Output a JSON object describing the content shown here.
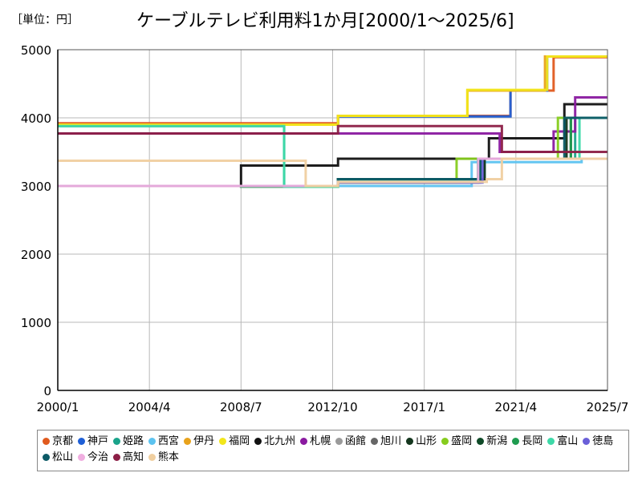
{
  "chart_data": {
    "type": "line",
    "unit_label": "［単位：円］",
    "title": "ケーブルテレビ利用料1か月[2000/1～2025/6]",
    "xlabel": "",
    "ylabel": "",
    "ylim": [
      0,
      5000
    ],
    "yticks": [
      0,
      1000,
      2000,
      3000,
      4000,
      5000
    ],
    "xlim": [
      2000.0,
      2025.5
    ],
    "xticks": [
      {
        "label": "2000/1",
        "value": 2000.0
      },
      {
        "label": "2004/4",
        "value": 2004.25
      },
      {
        "label": "2008/7",
        "value": 2008.5
      },
      {
        "label": "2012/10",
        "value": 2012.75
      },
      {
        "label": "2017/1",
        "value": 2017.0
      },
      {
        "label": "2021/4",
        "value": 2021.25
      },
      {
        "label": "2025/7",
        "value": 2025.5
      }
    ],
    "grid": true,
    "legend_position": "bottom",
    "series": [
      {
        "name": "京都",
        "color": "#e05a1e",
        "steps": [
          [
            2000.0,
            3920
          ],
          [
            2013.0,
            4030
          ],
          [
            2021.0,
            4400
          ],
          [
            2023.0,
            4890
          ]
        ]
      },
      {
        "name": "神戸",
        "color": "#1f5fd6",
        "steps": [
          [
            2000.0,
            3900
          ],
          [
            2013.0,
            4020
          ],
          [
            2021.0,
            4400
          ],
          [
            2022.7,
            4900
          ]
        ]
      },
      {
        "name": "姫路",
        "color": "#1aa38a",
        "steps": [
          [
            2000.0,
            3880
          ],
          [
            2010.5,
            3000
          ],
          [
            2013.0,
            3100
          ],
          [
            2019.8,
            3400
          ],
          [
            2024.0,
            4000
          ]
        ]
      },
      {
        "name": "西宮",
        "color": "#5cc3f0",
        "steps": [
          [
            2000.0,
            3000
          ],
          [
            2008.5,
            3000
          ],
          [
            2019.2,
            3350
          ],
          [
            2024.3,
            3400
          ]
        ]
      },
      {
        "name": "伊丹",
        "color": "#e8a21c",
        "steps": [
          [
            2000.0,
            3900
          ],
          [
            2013.0,
            4030
          ],
          [
            2019.0,
            4400
          ],
          [
            2021.0,
            4400
          ],
          [
            2022.6,
            4900
          ]
        ]
      },
      {
        "name": "福岡",
        "color": "#f2e61a",
        "steps": [
          [
            2000.0,
            3900
          ],
          [
            2013.0,
            4030
          ],
          [
            2019.0,
            4410
          ],
          [
            2022.7,
            4900
          ]
        ]
      },
      {
        "name": "北九州",
        "color": "#111111",
        "steps": [
          [
            2000.0,
            3000
          ],
          [
            2008.5,
            3300
          ],
          [
            2013.0,
            3400
          ],
          [
            2020.0,
            3700
          ],
          [
            2023.5,
            4200
          ]
        ]
      },
      {
        "name": "札幌",
        "color": "#8a1aa0",
        "steps": [
          [
            2000.0,
            3770
          ],
          [
            2020.5,
            3500
          ],
          [
            2023.0,
            3800
          ],
          [
            2024.0,
            4300
          ]
        ]
      },
      {
        "name": "函館",
        "color": "#9a9a9a",
        "steps": [
          [
            2000.0,
            3000
          ],
          [
            2013.0,
            3050
          ],
          [
            2019.6,
            3400
          ]
        ]
      },
      {
        "name": "旭川",
        "color": "#666666",
        "steps": [
          [
            2000.0,
            3000
          ],
          [
            2013.0,
            3050
          ],
          [
            2019.5,
            3400
          ]
        ]
      },
      {
        "name": "山形",
        "color": "#14361e",
        "steps": [
          [
            2000.0,
            3000
          ],
          [
            2013.0,
            3100
          ],
          [
            2019.8,
            3400
          ],
          [
            2023.6,
            4000
          ]
        ]
      },
      {
        "name": "盛岡",
        "color": "#86cc1e",
        "steps": [
          [
            2000.0,
            3000
          ],
          [
            2008.5,
            3000
          ],
          [
            2013.0,
            3050
          ],
          [
            2018.5,
            3400
          ],
          [
            2023.2,
            4000
          ]
        ]
      },
      {
        "name": "新潟",
        "color": "#0f4a28",
        "steps": [
          [
            2000.0,
            3000
          ],
          [
            2008.5,
            3000
          ],
          [
            2013.0,
            3100
          ],
          [
            2019.5,
            3400
          ],
          [
            2023.8,
            4000
          ]
        ]
      },
      {
        "name": "長岡",
        "color": "#1f9c50",
        "steps": [
          [
            2000.0,
            3000
          ],
          [
            2008.5,
            2990
          ],
          [
            2013.0,
            3060
          ],
          [
            2019.5,
            3400
          ],
          [
            2023.8,
            4000
          ]
        ]
      },
      {
        "name": "富山",
        "color": "#3dd9a8",
        "steps": [
          [
            2000.0,
            3880
          ],
          [
            2010.5,
            2990
          ],
          [
            2013.0,
            3080
          ],
          [
            2019.5,
            3400
          ],
          [
            2024.2,
            4000
          ]
        ]
      },
      {
        "name": "徳島",
        "color": "#6a5fd8",
        "steps": [
          [
            2000.0,
            3000
          ],
          [
            2013.0,
            3050
          ],
          [
            2019.7,
            3400
          ]
        ]
      },
      {
        "name": "松山",
        "color": "#0c5a66",
        "steps": [
          [
            2000.0,
            3000
          ],
          [
            2013.0,
            3100
          ],
          [
            2019.6,
            3400
          ],
          [
            2023.5,
            4000
          ]
        ]
      },
      {
        "name": "今治",
        "color": "#f0aee0",
        "steps": [
          [
            2000.0,
            3000
          ],
          [
            2008.5,
            3000
          ],
          [
            2013.0,
            3060
          ],
          [
            2019.5,
            3400
          ]
        ]
      },
      {
        "name": "高知",
        "color": "#8c1f46",
        "steps": [
          [
            2000.0,
            3770
          ],
          [
            2013.0,
            3880
          ],
          [
            2020.6,
            3500
          ],
          [
            2024.8,
            3500
          ]
        ]
      },
      {
        "name": "熊本",
        "color": "#f0cfa0",
        "steps": [
          [
            2000.0,
            3370
          ],
          [
            2011.5,
            3000
          ],
          [
            2013.0,
            3060
          ],
          [
            2019.9,
            3100
          ],
          [
            2020.6,
            3400
          ]
        ]
      }
    ]
  }
}
